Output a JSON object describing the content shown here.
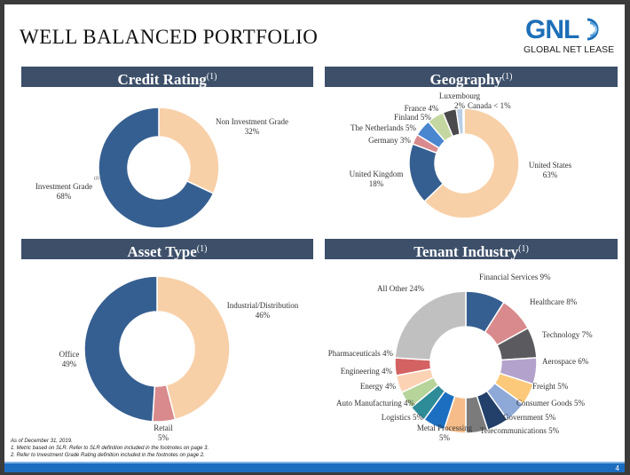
{
  "title": "WELL BALANCED PORTFOLIO",
  "logo": {
    "mark": "GNL",
    "name": "GLOBAL NET LEASE"
  },
  "page_number": "4",
  "footnotes": [
    "As of December 31, 2019.",
    "1.    Metric based on SLR. Refer to SLR definition included in the footnotes on page 3.",
    "2.    Refer to Investment Grade Rating definition included in the footnotes on page 2."
  ],
  "colors": {
    "header": "#3d4f69",
    "footer_bar": "#1c6cc0",
    "brand": "#1d6fb8"
  },
  "chart_data": [
    {
      "type": "pie",
      "title": "Credit Rating",
      "title_note": "(1)",
      "slices": [
        {
          "label": "Non Investment Grade",
          "value": 32,
          "display": "32%",
          "color": "#f8d0a8"
        },
        {
          "label": "Investment Grade",
          "value": 68,
          "display": "68%",
          "color": "#365f91",
          "note": "(2)"
        }
      ]
    },
    {
      "type": "pie",
      "title": "Geography",
      "title_note": "(1)",
      "slices": [
        {
          "label": "United States",
          "value": 63,
          "display": "63%",
          "color": "#f8d0a8"
        },
        {
          "label": "United Kingdom",
          "value": 18,
          "display": "18%",
          "color": "#365f91"
        },
        {
          "label": "Germany",
          "value": 3,
          "display": "3%",
          "color": "#d98a8c"
        },
        {
          "label": "The Netherlands",
          "value": 5,
          "display": "5%",
          "color": "#4a86d0"
        },
        {
          "label": "Finland",
          "value": 5,
          "display": "5%",
          "color": "#c4d7a0"
        },
        {
          "label": "France",
          "value": 4,
          "display": "4%",
          "color": "#4a4a4c"
        },
        {
          "label": "Luxembourg",
          "value": 2,
          "display": "2%",
          "color": "#b9cfe6"
        },
        {
          "label": "Canada",
          "value": 0.3,
          "display": "< 1%",
          "color": "#8fa9c8"
        }
      ]
    },
    {
      "type": "pie",
      "title": "Asset Type",
      "title_note": "(1)",
      "slices": [
        {
          "label": "Industrial/Distribution",
          "value": 46,
          "display": "46%",
          "color": "#f8d0a8"
        },
        {
          "label": "Retail",
          "value": 5,
          "display": "5%",
          "color": "#d98a8c"
        },
        {
          "label": "Office",
          "value": 49,
          "display": "49%",
          "color": "#365f91"
        }
      ]
    },
    {
      "type": "pie",
      "title": "Tenant Industry",
      "title_note": "(1)",
      "slices": [
        {
          "label": "Financial Services",
          "value": 9,
          "display": "9%",
          "color": "#365f91"
        },
        {
          "label": "Healthcare",
          "value": 8,
          "display": "8%",
          "color": "#d98a8c"
        },
        {
          "label": "Technology",
          "value": 7,
          "display": "7%",
          "color": "#5b5b5f"
        },
        {
          "label": "Aerospace",
          "value": 6,
          "display": "6%",
          "color": "#b3a2cc"
        },
        {
          "label": "Freight",
          "value": 5,
          "display": "5%",
          "color": "#fcc97a"
        },
        {
          "label": "Consumer Goods",
          "value": 5,
          "display": "5%",
          "color": "#8ea9d8"
        },
        {
          "label": "Government",
          "value": 5,
          "display": "5%",
          "color": "#23406a"
        },
        {
          "label": "Telecommunications",
          "value": 5,
          "display": "5%",
          "color": "#7b7b7b"
        },
        {
          "label": "Metal Processing",
          "value": 5,
          "display": "5%",
          "color": "#f6bd8a"
        },
        {
          "label": "Logistics",
          "value": 5,
          "display": "5%",
          "color": "#1c6fc0"
        },
        {
          "label": "Auto Manufacturing",
          "value": 4,
          "display": "4%",
          "color": "#2e8c98"
        },
        {
          "label": "Energy",
          "value": 4,
          "display": "4%",
          "color": "#b7d49a"
        },
        {
          "label": "Engineering",
          "value": 4,
          "display": "4%",
          "color": "#fbd2b4"
        },
        {
          "label": "Pharmaceuticals",
          "value": 4,
          "display": "4%",
          "color": "#d46262"
        },
        {
          "label": "All Other",
          "value": 24,
          "display": "24%",
          "color": "#c0c0c0"
        }
      ]
    }
  ]
}
